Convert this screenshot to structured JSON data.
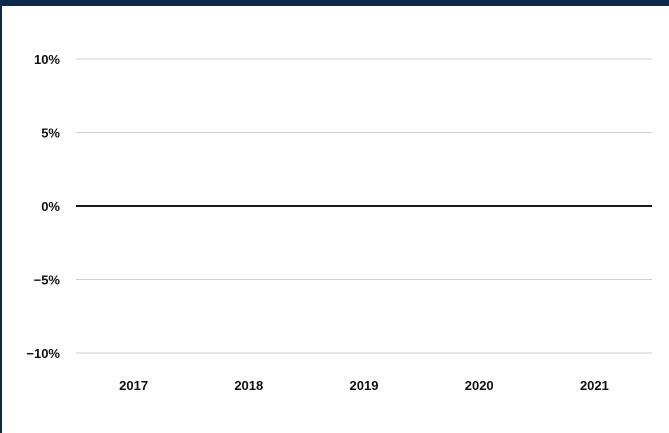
{
  "chart_data": {
    "type": "bar",
    "categories": [
      "2017",
      "2018",
      "2019",
      "2020",
      "2021"
    ],
    "series": [],
    "ylim": [
      -10,
      10
    ],
    "yticks": [
      10,
      5,
      0,
      -5,
      -10
    ],
    "ytick_labels": [
      "10%",
      "5%",
      "0%",
      "−5%",
      "−10%"
    ],
    "grid": true,
    "colors": {
      "frame": "#0d2a4d",
      "gridline": "#cfcfcf",
      "zero_line": "#1a1a1a",
      "text": "#111111"
    }
  }
}
